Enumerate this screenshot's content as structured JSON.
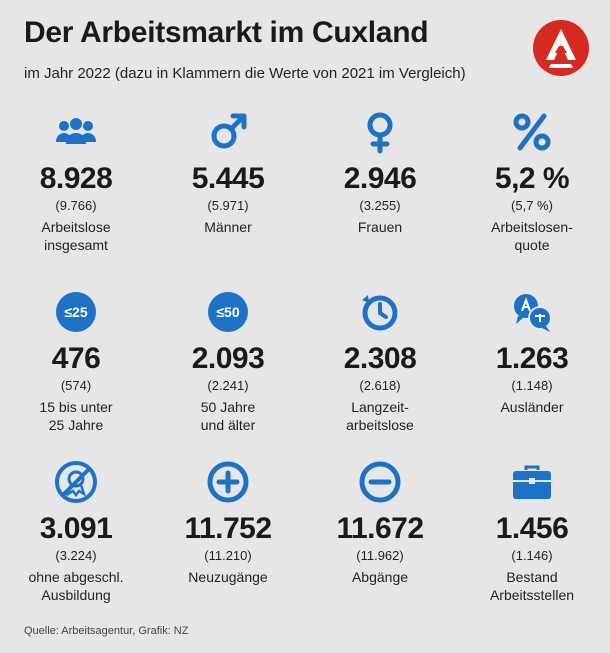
{
  "header": {
    "title": "Der Arbeitsmarkt im Cuxland",
    "subtitle": "im Jahr 2022 (dazu in Klammern die Werte von 2021 im Vergleich)"
  },
  "colors": {
    "accent": "#1e72c6",
    "logo_red": "#d42a1f"
  },
  "cells": [
    {
      "icon": "people-group-icon",
      "value": "8.928",
      "prev": "(9.766)",
      "label1": "Arbeitslose",
      "label2": "insgesamt"
    },
    {
      "icon": "male-symbol-icon",
      "value": "5.445",
      "prev": "(5.971)",
      "label1": "Männer",
      "label2": ""
    },
    {
      "icon": "female-symbol-icon",
      "value": "2.946",
      "prev": "(3.255)",
      "label1": "Frauen",
      "label2": ""
    },
    {
      "icon": "percent-icon",
      "value": "5,2 %",
      "prev": "(5,7 %)",
      "label1": "Arbeitslosen-",
      "label2": "quote"
    },
    {
      "icon": "age-under-25-icon",
      "badge": "≤25",
      "value": "476",
      "prev": "(574)",
      "label1": "15 bis unter",
      "label2": "25 Jahre"
    },
    {
      "icon": "age-over-50-icon",
      "badge": "≤50",
      "value": "2.093",
      "prev": "(2.241)",
      "label1": "50 Jahre",
      "label2": "und älter"
    },
    {
      "icon": "long-term-clock-icon",
      "value": "2.308",
      "prev": "(2.618)",
      "label1": "Langzeit-",
      "label2": "arbeitslose"
    },
    {
      "icon": "language-bubbles-icon",
      "value": "1.263",
      "prev": "(1.148)",
      "label1": "Ausländer",
      "label2": ""
    },
    {
      "icon": "no-degree-icon",
      "value": "3.091",
      "prev": "(3.224)",
      "label1": "ohne abgeschl.",
      "label2": "Ausbildung"
    },
    {
      "icon": "plus-circle-icon",
      "value": "11.752",
      "prev": "(11.210)",
      "label1": "Neuzugänge",
      "label2": ""
    },
    {
      "icon": "minus-circle-icon",
      "value": "11.672",
      "prev": "(11.962)",
      "label1": "Abgänge",
      "label2": ""
    },
    {
      "icon": "briefcase-icon",
      "value": "1.456",
      "prev": "(1.146)",
      "label1": "Bestand",
      "label2": "Arbeitsstellen"
    }
  ],
  "footer": {
    "source": "Quelle: Arbeitsagentur, Grafik: NZ"
  }
}
